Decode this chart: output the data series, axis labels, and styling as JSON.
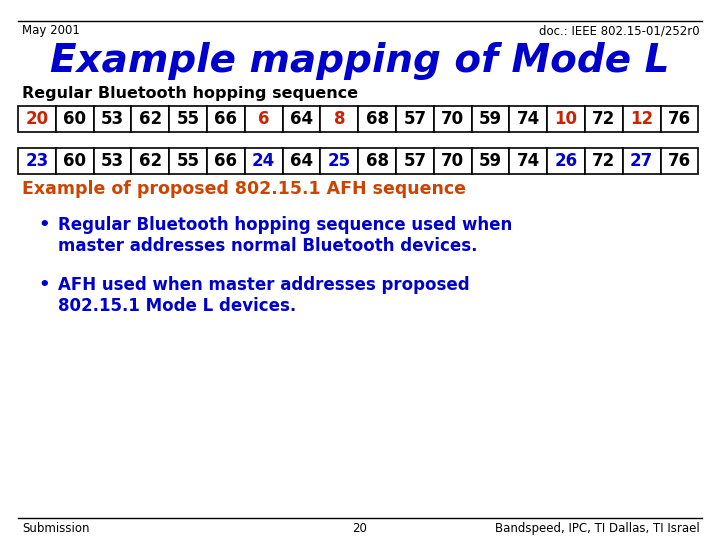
{
  "title": "Example mapping of Mode L",
  "header_left": "May 2001",
  "header_right": "doc.: IEEE 802.15-01/252r0",
  "footer_left": "Submission",
  "footer_center": "20",
  "footer_right": "Bandspeed, IPC, TI Dallas, TI Israel",
  "row1_label": "Regular Bluetooth hopping sequence",
  "row1_values": [
    "20",
    "60",
    "53",
    "62",
    "55",
    "66",
    "6",
    "64",
    "8",
    "68",
    "57",
    "70",
    "59",
    "74",
    "10",
    "72",
    "12",
    "76"
  ],
  "row1_colors": [
    "#cc2200",
    "#000000",
    "#000000",
    "#000000",
    "#000000",
    "#000000",
    "#cc2200",
    "#000000",
    "#cc2200",
    "#000000",
    "#000000",
    "#000000",
    "#000000",
    "#000000",
    "#cc2200",
    "#000000",
    "#cc2200",
    "#000000"
  ],
  "row2_values": [
    "23",
    "60",
    "53",
    "62",
    "55",
    "66",
    "24",
    "64",
    "25",
    "68",
    "57",
    "70",
    "59",
    "74",
    "26",
    "72",
    "27",
    "76"
  ],
  "row2_colors": [
    "#0000cc",
    "#000000",
    "#000000",
    "#000000",
    "#000000",
    "#000000",
    "#0000cc",
    "#000000",
    "#0000cc",
    "#000000",
    "#000000",
    "#000000",
    "#000000",
    "#000000",
    "#0000cc",
    "#000000",
    "#0000cc",
    "#000000"
  ],
  "row2_label": "Example of proposed 802.15.1 AFH sequence",
  "bullet1_line1": "Regular Bluetooth hopping sequence used when",
  "bullet1_line2": "master addresses normal Bluetooth devices.",
  "bullet2_line1": "AFH used when master addresses proposed",
  "bullet2_line2": "802.15.1 Mode L devices.",
  "bg_color": "#ffffff",
  "title_color": "#0000cc",
  "header_color": "#000000",
  "row2_label_color": "#cc4400",
  "bullet_color": "#0000cc"
}
